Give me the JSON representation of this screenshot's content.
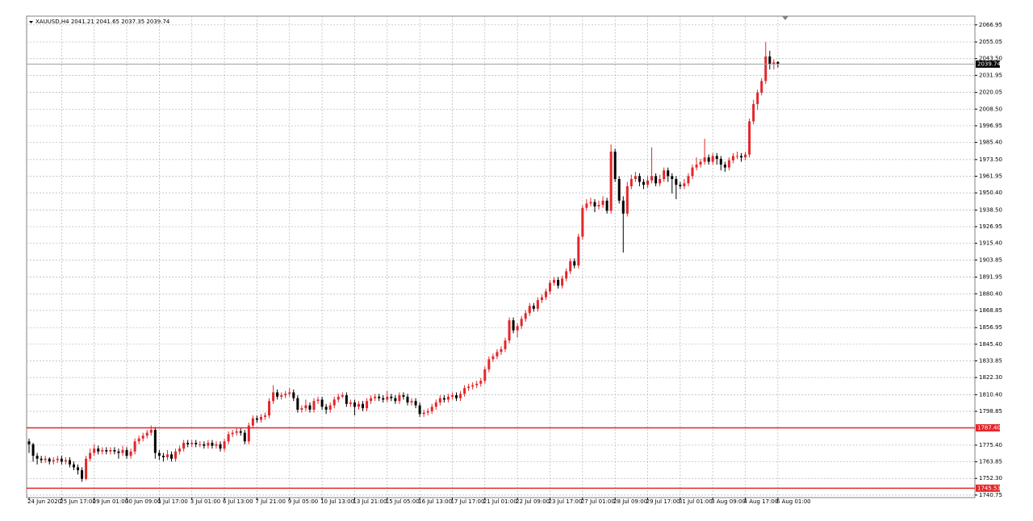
{
  "chart_data": {
    "type": "candlestick",
    "symbol": "XAUUSD,H4",
    "up_color": "#e3262a",
    "down_color": "#000000",
    "grid": true,
    "ylim": [
      1739,
      2073
    ],
    "yticks": [
      2066.95,
      2055.05,
      {
        "value": 2043.5,
        "label": "2043.50"
      },
      2031.95,
      2020.05,
      {
        "value": 2008.5,
        "label": "2008.50"
      },
      1996.95,
      {
        "value": 1985.4,
        "label": "1985.40"
      },
      {
        "value": 1973.5,
        "label": "1973.50"
      },
      1961.95,
      {
        "value": 1950.4,
        "label": "1950.40"
      },
      {
        "value": 1938.5,
        "label": "1938.50"
      },
      1926.95,
      {
        "value": 1915.4,
        "label": "1915.40"
      },
      1903.85,
      1891.95,
      {
        "value": 1880.4,
        "label": "1880.40"
      },
      1868.85,
      1856.95,
      {
        "value": 1845.4,
        "label": "1845.40"
      },
      1833.85,
      {
        "value": 1822.3,
        "label": "1822.30"
      },
      {
        "value": 1810.4,
        "label": "1810.40"
      },
      1798.85,
      {
        "value": 1775.4,
        "label": "1775.40"
      },
      1763.85,
      {
        "value": 1752.3,
        "label": "1752.30"
      },
      1740.75
    ],
    "xlim": [
      0,
      233
    ],
    "xticks": [
      {
        "value": 0,
        "label": "24 Jun 2020"
      },
      {
        "value": 8,
        "label": "25 Jun 17:00"
      },
      {
        "value": 16,
        "label": "29 Jun 01:00"
      },
      {
        "value": 24,
        "label": "30 Jun 09:00"
      },
      {
        "value": 32,
        "label": "1 Jul 17:00"
      },
      {
        "value": 40,
        "label": "3 Jul 01:00"
      },
      {
        "value": 48,
        "label": "6 Jul 13:00"
      },
      {
        "value": 56,
        "label": "7 Jul 21:00"
      },
      {
        "value": 64,
        "label": "9 Jul 05:00"
      },
      {
        "value": 72,
        "label": "10 Jul 13:00"
      },
      {
        "value": 80,
        "label": "13 Jul 21:00"
      },
      {
        "value": 88,
        "label": "15 Jul 05:00"
      },
      {
        "value": 96,
        "label": "16 Jul 13:00"
      },
      {
        "value": 104,
        "label": "17 Jul 17:00"
      },
      {
        "value": 112,
        "label": "21 Jul 01:00"
      },
      {
        "value": 120,
        "label": "22 Jul 09:00"
      },
      {
        "value": 128,
        "label": "23 Jul 17:00"
      },
      {
        "value": 136,
        "label": "27 Jul 01:00"
      },
      {
        "value": 144,
        "label": "28 Jul 09:00"
      },
      {
        "value": 152,
        "label": "29 Jul 17:00"
      },
      {
        "value": 160,
        "label": "31 Jul 01:00"
      },
      {
        "value": 168,
        "label": "3 Aug 09:00"
      },
      {
        "value": 176,
        "label": "4 Aug 17:00"
      },
      {
        "value": 184,
        "label": "6 Aug 01:00"
      }
    ],
    "hlines": [
      {
        "value": 1787.4,
        "label": "1787.40",
        "color": "#e3262a"
      },
      {
        "value": 1745.53,
        "label": "1745.53",
        "color": "#e3262a"
      }
    ],
    "ohlc": [
      [
        1778,
        1780,
        1770,
        1776
      ],
      [
        1776,
        1777,
        1764,
        1768
      ],
      [
        1768,
        1770,
        1762,
        1766
      ],
      [
        1766,
        1768,
        1763,
        1765
      ],
      [
        1765,
        1768,
        1763,
        1766
      ],
      [
        1766,
        1767,
        1762,
        1764
      ],
      [
        1764,
        1767,
        1762,
        1765
      ],
      [
        1765,
        1768,
        1763,
        1766
      ],
      [
        1766,
        1768,
        1762,
        1764
      ],
      [
        1764,
        1767,
        1762,
        1765
      ],
      [
        1765,
        1767,
        1760,
        1762
      ],
      [
        1762,
        1764,
        1758,
        1760
      ],
      [
        1760,
        1762,
        1755,
        1758
      ],
      [
        1758,
        1760,
        1750,
        1752
      ],
      [
        1752,
        1768,
        1751,
        1766
      ],
      [
        1766,
        1773,
        1764,
        1770
      ],
      [
        1770,
        1776,
        1768,
        1773
      ],
      [
        1773,
        1775,
        1769,
        1771
      ],
      [
        1771,
        1774,
        1769,
        1772
      ],
      [
        1772,
        1774,
        1769,
        1771
      ],
      [
        1771,
        1774,
        1769,
        1772
      ],
      [
        1772,
        1774,
        1769,
        1771
      ],
      [
        1771,
        1773,
        1766,
        1770
      ],
      [
        1770,
        1775,
        1768,
        1772
      ],
      [
        1772,
        1774,
        1766,
        1768
      ],
      [
        1768,
        1773,
        1766,
        1771
      ],
      [
        1771,
        1780,
        1769,
        1778
      ],
      [
        1778,
        1782,
        1776,
        1780
      ],
      [
        1780,
        1784,
        1778,
        1782
      ],
      [
        1782,
        1786,
        1780,
        1784
      ],
      [
        1784,
        1789,
        1782,
        1786
      ],
      [
        1786,
        1788,
        1766,
        1770
      ],
      [
        1770,
        1772,
        1765,
        1768
      ],
      [
        1768,
        1770,
        1764,
        1767
      ],
      [
        1767,
        1772,
        1765,
        1769
      ],
      [
        1769,
        1771,
        1764,
        1766
      ],
      [
        1766,
        1773,
        1764,
        1771
      ],
      [
        1771,
        1775,
        1769,
        1773
      ],
      [
        1773,
        1779,
        1771,
        1777
      ],
      [
        1777,
        1779,
        1774,
        1776
      ],
      [
        1776,
        1779,
        1774,
        1777
      ],
      [
        1777,
        1779,
        1774,
        1776
      ],
      [
        1776,
        1778,
        1774,
        1776
      ],
      [
        1776,
        1778,
        1773,
        1775
      ],
      [
        1775,
        1779,
        1773,
        1777
      ],
      [
        1777,
        1779,
        1773,
        1775
      ],
      [
        1775,
        1778,
        1773,
        1776
      ],
      [
        1776,
        1778,
        1771,
        1773
      ],
      [
        1773,
        1780,
        1771,
        1778
      ],
      [
        1778,
        1785,
        1776,
        1783
      ],
      [
        1783,
        1786,
        1781,
        1784
      ],
      [
        1784,
        1787,
        1782,
        1785
      ],
      [
        1785,
        1787,
        1782,
        1784
      ],
      [
        1784,
        1786,
        1776,
        1778
      ],
      [
        1778,
        1791,
        1776,
        1789
      ],
      [
        1789,
        1796,
        1787,
        1794
      ],
      [
        1794,
        1796,
        1791,
        1793
      ],
      [
        1793,
        1797,
        1791,
        1795
      ],
      [
        1795,
        1798,
        1793,
        1796
      ],
      [
        1796,
        1808,
        1794,
        1806
      ],
      [
        1806,
        1817,
        1804,
        1812
      ],
      [
        1812,
        1814,
        1807,
        1809
      ],
      [
        1809,
        1812,
        1807,
        1810
      ],
      [
        1810,
        1813,
        1808,
        1811
      ],
      [
        1811,
        1815,
        1809,
        1812
      ],
      [
        1812,
        1814,
        1806,
        1808
      ],
      [
        1808,
        1810,
        1798,
        1800
      ],
      [
        1800,
        1803,
        1798,
        1801
      ],
      [
        1801,
        1807,
        1799,
        1803
      ],
      [
        1803,
        1805,
        1798,
        1800
      ],
      [
        1800,
        1808,
        1798,
        1806
      ],
      [
        1806,
        1809,
        1804,
        1807
      ],
      [
        1807,
        1809,
        1800,
        1802
      ],
      [
        1802,
        1804,
        1797,
        1800
      ],
      [
        1800,
        1805,
        1798,
        1803
      ],
      [
        1803,
        1809,
        1801,
        1807
      ],
      [
        1807,
        1811,
        1805,
        1809
      ],
      [
        1809,
        1812,
        1808,
        1810
      ],
      [
        1810,
        1812,
        1802,
        1804
      ],
      [
        1804,
        1807,
        1802,
        1805
      ],
      [
        1805,
        1807,
        1796,
        1802
      ],
      [
        1802,
        1806,
        1800,
        1804
      ],
      [
        1804,
        1806,
        1799,
        1801
      ],
      [
        1801,
        1808,
        1799,
        1806
      ],
      [
        1806,
        1810,
        1804,
        1808
      ],
      [
        1808,
        1811,
        1806,
        1809
      ],
      [
        1809,
        1811,
        1806,
        1808
      ],
      [
        1808,
        1810,
        1805,
        1807
      ],
      [
        1807,
        1813,
        1805,
        1809
      ],
      [
        1809,
        1811,
        1806,
        1808
      ],
      [
        1808,
        1810,
        1804,
        1806
      ],
      [
        1806,
        1812,
        1804,
        1810
      ],
      [
        1810,
        1812,
        1807,
        1809
      ],
      [
        1809,
        1811,
        1803,
        1805
      ],
      [
        1805,
        1808,
        1803,
        1806
      ],
      [
        1806,
        1808,
        1801,
        1803
      ],
      [
        1803,
        1805,
        1795,
        1797
      ],
      [
        1797,
        1800,
        1795,
        1798
      ],
      [
        1798,
        1801,
        1796,
        1799
      ],
      [
        1799,
        1804,
        1797,
        1802
      ],
      [
        1802,
        1807,
        1800,
        1805
      ],
      [
        1805,
        1810,
        1803,
        1808
      ],
      [
        1808,
        1810,
        1805,
        1807
      ],
      [
        1807,
        1811,
        1805,
        1809
      ],
      [
        1809,
        1812,
        1807,
        1810
      ],
      [
        1810,
        1812,
        1806,
        1808
      ],
      [
        1808,
        1813,
        1806,
        1811
      ],
      [
        1811,
        1817,
        1809,
        1815
      ],
      [
        1815,
        1818,
        1813,
        1816
      ],
      [
        1816,
        1819,
        1814,
        1817
      ],
      [
        1817,
        1820,
        1815,
        1818
      ],
      [
        1818,
        1822,
        1816,
        1820
      ],
      [
        1820,
        1830,
        1818,
        1828
      ],
      [
        1828,
        1837,
        1826,
        1835
      ],
      [
        1835,
        1839,
        1833,
        1837
      ],
      [
        1837,
        1842,
        1835,
        1840
      ],
      [
        1840,
        1844,
        1838,
        1842
      ],
      [
        1842,
        1850,
        1840,
        1848
      ],
      [
        1848,
        1864,
        1846,
        1862
      ],
      [
        1862,
        1864,
        1853,
        1855
      ],
      [
        1855,
        1860,
        1850,
        1858
      ],
      [
        1858,
        1865,
        1856,
        1863
      ],
      [
        1863,
        1869,
        1861,
        1867
      ],
      [
        1867,
        1874,
        1865,
        1872
      ],
      [
        1872,
        1874,
        1868,
        1870
      ],
      [
        1870,
        1878,
        1868,
        1876
      ],
      [
        1876,
        1880,
        1874,
        1878
      ],
      [
        1878,
        1884,
        1876,
        1882
      ],
      [
        1882,
        1890,
        1880,
        1888
      ],
      [
        1888,
        1892,
        1886,
        1890
      ],
      [
        1890,
        1892,
        1884,
        1886
      ],
      [
        1886,
        1893,
        1884,
        1891
      ],
      [
        1891,
        1898,
        1889,
        1896
      ],
      [
        1896,
        1905,
        1894,
        1903
      ],
      [
        1903,
        1905,
        1898,
        1900
      ],
      [
        1900,
        1922,
        1898,
        1920
      ],
      [
        1920,
        1942,
        1918,
        1940
      ],
      [
        1940,
        1946,
        1938,
        1943
      ],
      [
        1943,
        1947,
        1941,
        1944
      ],
      [
        1944,
        1946,
        1937,
        1941
      ],
      [
        1941,
        1945,
        1939,
        1942
      ],
      [
        1942,
        1948,
        1940,
        1945
      ],
      [
        1945,
        1947,
        1936,
        1938
      ],
      [
        1938,
        1984,
        1936,
        1979
      ],
      [
        1979,
        1981,
        1958,
        1960
      ],
      [
        1960,
        1962,
        1943,
        1945
      ],
      [
        1945,
        1948,
        1909,
        1936
      ],
      [
        1936,
        1958,
        1934,
        1955
      ],
      [
        1955,
        1963,
        1953,
        1960
      ],
      [
        1960,
        1965,
        1958,
        1962
      ],
      [
        1962,
        1964,
        1955,
        1958
      ],
      [
        1958,
        1960,
        1953,
        1956
      ],
      [
        1956,
        1962,
        1954,
        1959
      ],
      [
        1959,
        1982,
        1957,
        1962
      ],
      [
        1962,
        1964,
        1955,
        1957
      ],
      [
        1957,
        1963,
        1955,
        1960
      ],
      [
        1960,
        1968,
        1958,
        1966
      ],
      [
        1966,
        1968,
        1958,
        1962
      ],
      [
        1962,
        1964,
        1950,
        1960
      ],
      [
        1960,
        1962,
        1946,
        1956
      ],
      [
        1956,
        1958,
        1953,
        1955
      ],
      [
        1955,
        1960,
        1953,
        1957
      ],
      [
        1957,
        1964,
        1955,
        1962
      ],
      [
        1962,
        1970,
        1960,
        1968
      ],
      [
        1968,
        1975,
        1966,
        1970
      ],
      [
        1970,
        1974,
        1968,
        1972
      ],
      [
        1972,
        1988,
        1970,
        1975
      ],
      [
        1975,
        1977,
        1970,
        1972
      ],
      [
        1972,
        1978,
        1970,
        1976
      ],
      [
        1976,
        1978,
        1970,
        1974
      ],
      [
        1974,
        1976,
        1966,
        1970
      ],
      [
        1970,
        1972,
        1965,
        1968
      ],
      [
        1968,
        1975,
        1966,
        1973
      ],
      [
        1973,
        1978,
        1971,
        1976
      ],
      [
        1976,
        1979,
        1974,
        1976
      ],
      [
        1976,
        1978,
        1972,
        1975
      ],
      [
        1975,
        1979,
        1973,
        1977
      ],
      [
        1977,
        2002,
        1975,
        2000
      ],
      [
        2000,
        2015,
        1998,
        2012
      ],
      [
        2012,
        2022,
        2008,
        2020
      ],
      [
        2020,
        2030,
        2018,
        2028
      ],
      [
        2028,
        2055,
        2026,
        2045
      ],
      [
        2045,
        2049,
        2036,
        2040
      ],
      [
        2040,
        2043,
        2036,
        2041
      ],
      [
        2041.21,
        2041.65,
        2037.35,
        2039.74
      ]
    ]
  }
}
